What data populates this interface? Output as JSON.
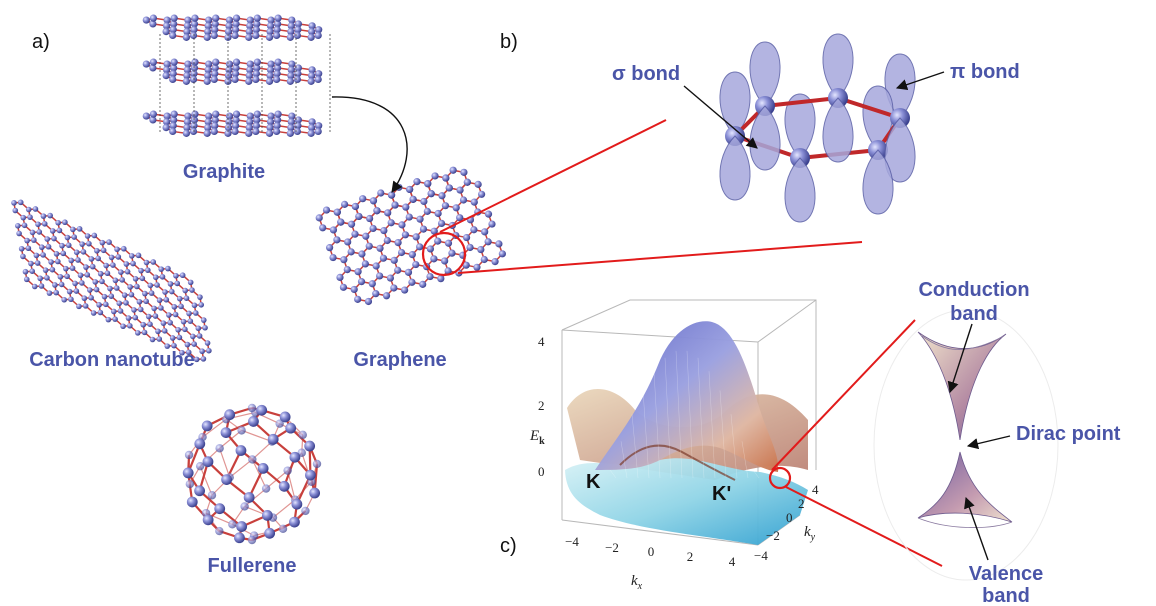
{
  "panels": {
    "a": "a)",
    "b": "b)",
    "c": "c)"
  },
  "allotropes": {
    "graphite": "Graphite",
    "nanotube": "Carbon nanotube",
    "graphene": "Graphene",
    "fullerene": "Fullerene"
  },
  "bonds": {
    "sigma": "σ bond",
    "pi": "π bond"
  },
  "band_plot": {
    "zlabel_main": "E",
    "zlabel_sub": "k",
    "xlabel_main": "k",
    "xlabel_sub": "x",
    "ylabel_main": "k",
    "ylabel_sub": "y",
    "z_ticks": [
      "4",
      "2",
      "0"
    ],
    "x_ticks": [
      "−4",
      "−2",
      "0",
      "2",
      "4"
    ],
    "y_ticks": [
      "4",
      "2",
      "0",
      "−2",
      "−4"
    ],
    "points": {
      "K": "K",
      "Kprime": "K'"
    }
  },
  "cone": {
    "conduction_line1": "Conduction",
    "conduction_line2": "band",
    "dirac": "Dirac point",
    "valence_line1": "Valence",
    "valence_line2": "band"
  },
  "colors": {
    "atom": "#7a80cc",
    "bond": "#c8403c",
    "label": "#4a55a8",
    "highlight": "#e21b1b",
    "orbital": "#a6a8dc"
  }
}
